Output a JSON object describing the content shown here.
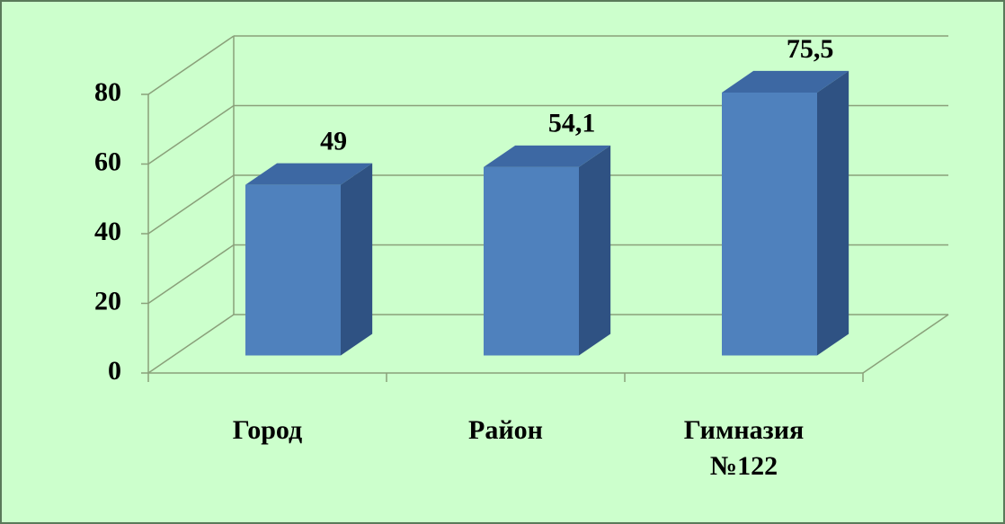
{
  "chart_data": {
    "type": "bar3d",
    "categories": [
      "Город",
      "Район",
      "Гимназия №122"
    ],
    "values": [
      49,
      54.1,
      75.5
    ],
    "value_labels": [
      "49",
      "54,1",
      "75,5"
    ],
    "colors": {
      "front": "#4f81bd",
      "side": "#2f5283",
      "top": "#3d68a3"
    },
    "ylim": [
      0,
      80
    ],
    "yticks": [
      0,
      20,
      40,
      60,
      80
    ],
    "grid": true
  }
}
